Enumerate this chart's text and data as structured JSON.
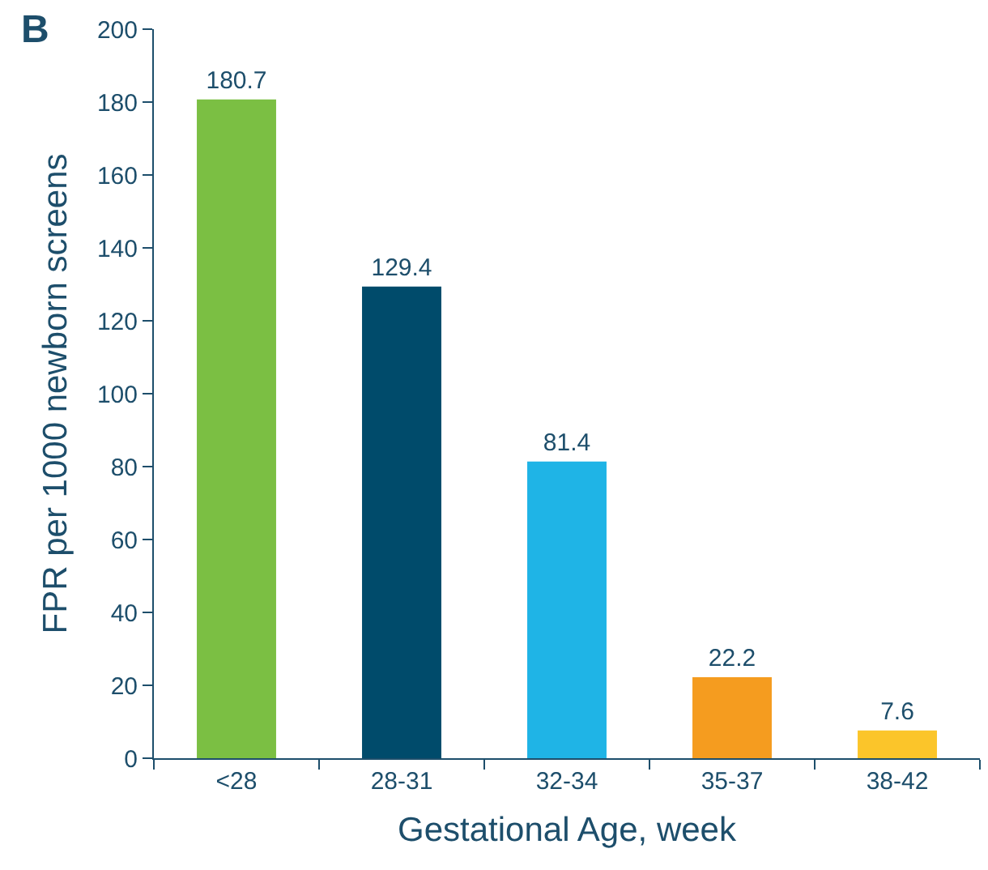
{
  "chart_data": {
    "type": "bar",
    "categories": [
      "<28",
      "28-31",
      "32-34",
      "35-37",
      "38-42"
    ],
    "values": [
      180.7,
      129.4,
      81.4,
      22.2,
      7.6
    ],
    "colors": [
      "#7bbf43",
      "#004b6b",
      "#1fb4e6",
      "#f59c1f",
      "#fbc52a"
    ],
    "xlabel": "Gestational Age, week",
    "ylabel": "FPR per 1000 newborn screens",
    "ylim": [
      0,
      200
    ],
    "yticks": [
      0,
      20,
      40,
      60,
      80,
      100,
      120,
      140,
      160,
      180,
      200
    ],
    "data_labels": true,
    "grid": false,
    "legend": false,
    "annotations": [
      "B"
    ]
  }
}
